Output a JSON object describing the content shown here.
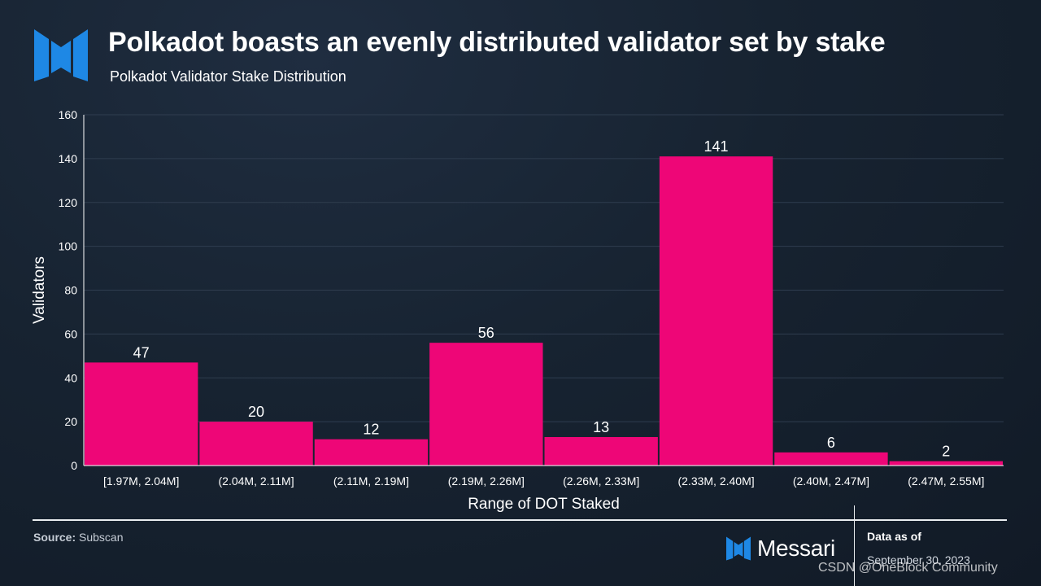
{
  "header": {
    "title": "Polkadot boasts an evenly distributed validator set by stake",
    "subtitle": "Polkadot Validator Stake Distribution"
  },
  "colors": {
    "bar": "#ee0677",
    "logo": "#1e88e5",
    "grid": "#2f3d4f",
    "text": "#ffffff"
  },
  "chart_data": {
    "type": "bar",
    "categories": [
      "[1.97M, 2.04M]",
      "(2.04M, 2.11M]",
      "(2.11M, 2.19M]",
      "(2.19M, 2.26M]",
      "(2.26M, 2.33M]",
      "(2.33M, 2.40M]",
      "(2.40M, 2.47M]",
      "(2.47M, 2.55M]"
    ],
    "values": [
      47,
      20,
      12,
      56,
      13,
      141,
      6,
      2
    ],
    "xlabel": "Range of DOT Staked",
    "ylabel": "Validators",
    "ylim": [
      0,
      160
    ],
    "yticks": [
      0,
      20,
      40,
      60,
      80,
      100,
      120,
      140,
      160
    ],
    "grid": true,
    "data_labels": true
  },
  "footer": {
    "source_label": "Source:",
    "source_value": "Subscan",
    "brand": "Messari",
    "as_of_label": "Data as of",
    "as_of_date": "September 30, 2023",
    "watermark": "CSDN @OneBlock Community"
  }
}
